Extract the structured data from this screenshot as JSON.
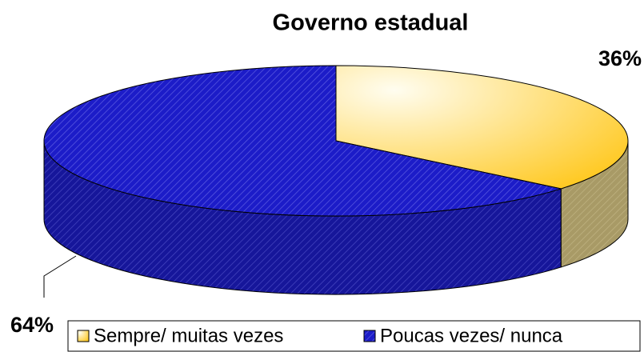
{
  "chart_data": {
    "type": "pie3d",
    "title": "Governo estadual",
    "categories": [
      "Sempre/ muitas vezes",
      "Poucas vezes/ nunca"
    ],
    "values": [
      36,
      64
    ],
    "value_labels": [
      "36%",
      "64%"
    ],
    "colors": [
      "#FFE27A",
      "#1C1CC8"
    ],
    "legend": "bottom"
  }
}
